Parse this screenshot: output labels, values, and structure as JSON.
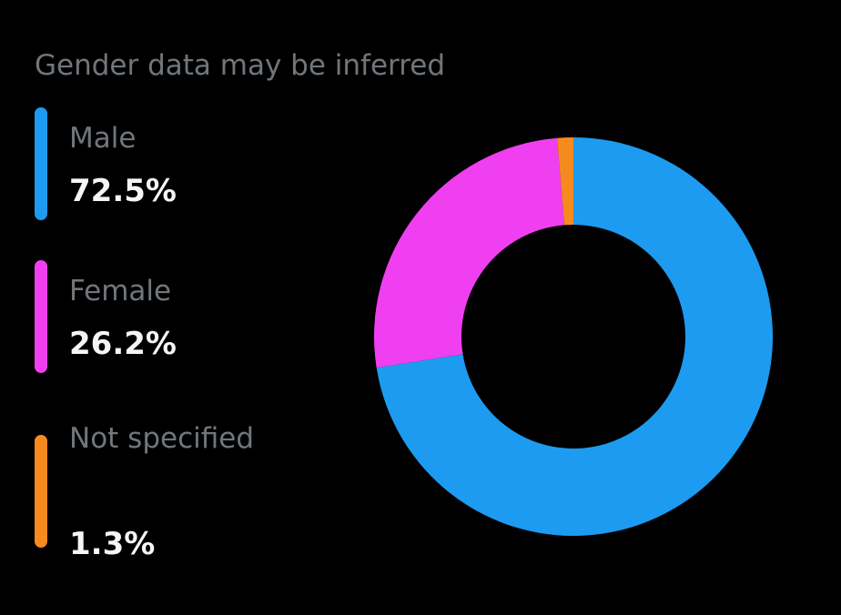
{
  "note": "Gender data may be inferred",
  "colors": {
    "male": "#1d9bf0",
    "female": "#f03ff0",
    "not_specified": "#f78a1f",
    "background": "#000000"
  },
  "chart_data": {
    "type": "pie",
    "donut": true,
    "categories": [
      "Male",
      "Female",
      "Not specified"
    ],
    "values": [
      72.5,
      26.2,
      1.3
    ],
    "value_labels": [
      "72.5%",
      "26.2%",
      "1.3%"
    ],
    "colors": [
      "#1d9bf0",
      "#f03ff0",
      "#f78a1f"
    ]
  }
}
